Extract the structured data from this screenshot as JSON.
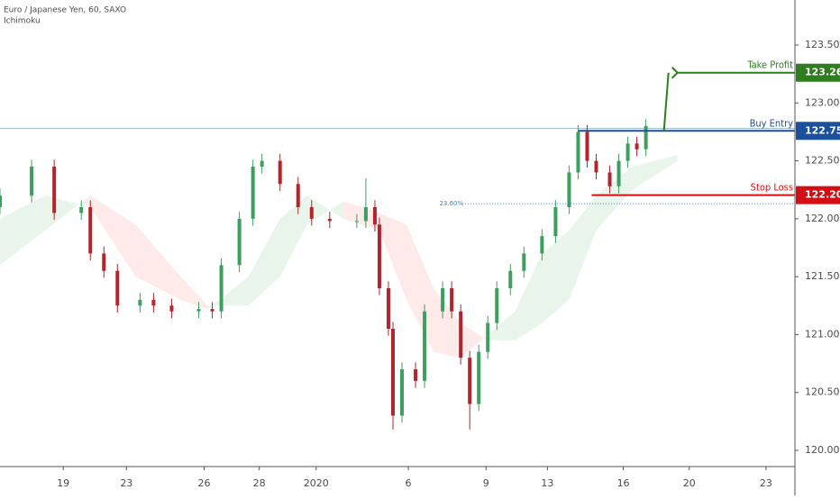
{
  "chart_data": {
    "type": "candlestick",
    "title": "Euro / Japanese Yen, 60, SAXO",
    "subtitle": "Ichimoku",
    "xlim": [
      0,
      176
    ],
    "xticks": [
      {
        "value": 14,
        "label": "19"
      },
      {
        "value": 28,
        "label": "23"
      },
      {
        "value": 45.2,
        "label": "26"
      },
      {
        "value": 57.4,
        "label": "28"
      },
      {
        "value": 70,
        "label": "2020"
      },
      {
        "value": 90.4,
        "label": "6"
      },
      {
        "value": 107.6,
        "label": "9"
      },
      {
        "value": 121.2,
        "label": "13"
      },
      {
        "value": 138,
        "label": "16"
      },
      {
        "value": 152.6,
        "label": "20"
      },
      {
        "value": 169.6,
        "label": "23"
      }
    ],
    "ylim": [
      119.86,
      123.889
    ],
    "yticks": [
      {
        "value": 120,
        "label": "120.000"
      },
      {
        "value": 120.5,
        "label": "120.500"
      },
      {
        "value": 121,
        "label": "121.000"
      },
      {
        "value": 121.5,
        "label": "121.500"
      },
      {
        "value": 122,
        "label": "122.000"
      },
      {
        "value": 122.5,
        "label": "122.500"
      },
      {
        "value": 123,
        "label": "123.000"
      },
      {
        "value": 123.5,
        "label": "123.500"
      }
    ],
    "up_color": "#3d9f5f",
    "down_color": "#b3242c",
    "x": [
      0,
      7,
      12,
      18,
      20,
      23,
      26,
      31,
      34,
      38,
      44,
      47,
      49,
      53,
      56,
      58,
      62,
      66,
      69,
      73,
      79,
      81,
      83,
      84,
      86,
      87,
      89,
      92,
      94,
      98,
      100,
      102,
      104,
      106,
      108,
      110,
      113,
      116,
      120,
      123,
      126,
      128,
      130,
      132,
      135,
      137,
      139,
      141,
      143
    ],
    "open": [
      122.1,
      122.2,
      122.45,
      122.05,
      122.1,
      121.7,
      121.55,
      121.25,
      121.3,
      121.25,
      121.2,
      121.22,
      121.2,
      121.6,
      122.0,
      122.45,
      122.5,
      122.3,
      122.1,
      122.0,
      121.98,
      121.98,
      122.1,
      121.95,
      121.4,
      121.05,
      120.3,
      120.7,
      120.6,
      121.2,
      121.4,
      121.2,
      120.8,
      120.4,
      120.85,
      121.1,
      121.4,
      121.55,
      121.7,
      121.85,
      122.1,
      122.4,
      122.75,
      122.5,
      122.4,
      122.28,
      122.5,
      122.65,
      122.6
    ],
    "high": [
      122.26,
      122.51,
      122.51,
      122.16,
      122.16,
      121.76,
      121.61,
      121.36,
      121.36,
      121.31,
      121.28,
      121.28,
      121.66,
      122.06,
      122.51,
      122.56,
      122.56,
      122.36,
      122.16,
      122.06,
      122.04,
      122.35,
      122.16,
      122.01,
      121.46,
      121.11,
      120.76,
      120.76,
      121.26,
      121.46,
      121.46,
      121.26,
      120.86,
      120.91,
      121.16,
      121.46,
      121.61,
      121.76,
      121.91,
      122.16,
      122.46,
      122.81,
      122.81,
      122.56,
      122.46,
      122.56,
      122.71,
      122.71,
      122.86
    ],
    "low": [
      122.04,
      122.14,
      121.99,
      121.99,
      121.64,
      121.49,
      121.19,
      121.19,
      121.19,
      121.14,
      121.14,
      121.14,
      121.14,
      121.54,
      121.94,
      122.39,
      122.24,
      122.04,
      121.94,
      121.92,
      121.92,
      121.92,
      121.89,
      121.34,
      120.99,
      120.18,
      120.24,
      120.54,
      120.54,
      121.14,
      121.14,
      120.74,
      120.18,
      120.34,
      120.79,
      121.04,
      121.34,
      121.49,
      121.64,
      121.79,
      122.04,
      122.34,
      122.44,
      122.34,
      122.22,
      122.22,
      122.44,
      122.54,
      122.54
    ],
    "close": [
      122.2,
      122.45,
      122.05,
      122.1,
      121.7,
      121.55,
      121.25,
      121.3,
      121.25,
      121.2,
      121.22,
      121.2,
      121.6,
      122.0,
      122.45,
      122.5,
      122.3,
      122.1,
      122.0,
      121.98,
      121.98,
      122.1,
      121.95,
      121.4,
      121.05,
      120.3,
      120.7,
      120.6,
      121.2,
      121.4,
      121.2,
      120.8,
      120.4,
      120.85,
      121.1,
      121.4,
      121.55,
      121.7,
      121.85,
      122.1,
      122.4,
      122.75,
      122.5,
      122.4,
      122.28,
      122.5,
      122.65,
      122.6,
      122.8
    ],
    "cloud": {
      "x": [
        0,
        10,
        20,
        30,
        40,
        46,
        55,
        62,
        68,
        76,
        84,
        90,
        96,
        102,
        108,
        114,
        120,
        126,
        132,
        140,
        150
      ],
      "span_a": [
        122.0,
        122.2,
        122.1,
        121.5,
        121.3,
        121.22,
        121.5,
        122.0,
        122.2,
        122.0,
        121.9,
        121.3,
        120.85,
        120.8,
        121.0,
        121.2,
        121.7,
        121.9,
        122.2,
        122.45,
        122.55
      ],
      "span_b": [
        121.6,
        121.9,
        122.2,
        121.95,
        121.5,
        121.25,
        121.25,
        121.5,
        121.95,
        122.15,
        122.05,
        121.95,
        121.4,
        121.1,
        120.95,
        120.95,
        121.1,
        121.3,
        121.9,
        122.25,
        122.5
      ],
      "up_color": "#4caf50",
      "down_color": "#ff5252"
    },
    "reference_line": 122.78,
    "fib": {
      "label": "23.60%",
      "price": 122.13,
      "x_start": 103
    },
    "levels": [
      {
        "name": "Take Profit",
        "value": 123.261,
        "color": "#2e7d1f",
        "x_start": 150
      },
      {
        "name": "Buy Entry",
        "value": 122.759,
        "color": "#1c4f9c",
        "x_start": 128
      },
      {
        "name": "Stop Loss",
        "value": 122.204,
        "color": "#d40f14",
        "x_start": 131
      }
    ]
  }
}
